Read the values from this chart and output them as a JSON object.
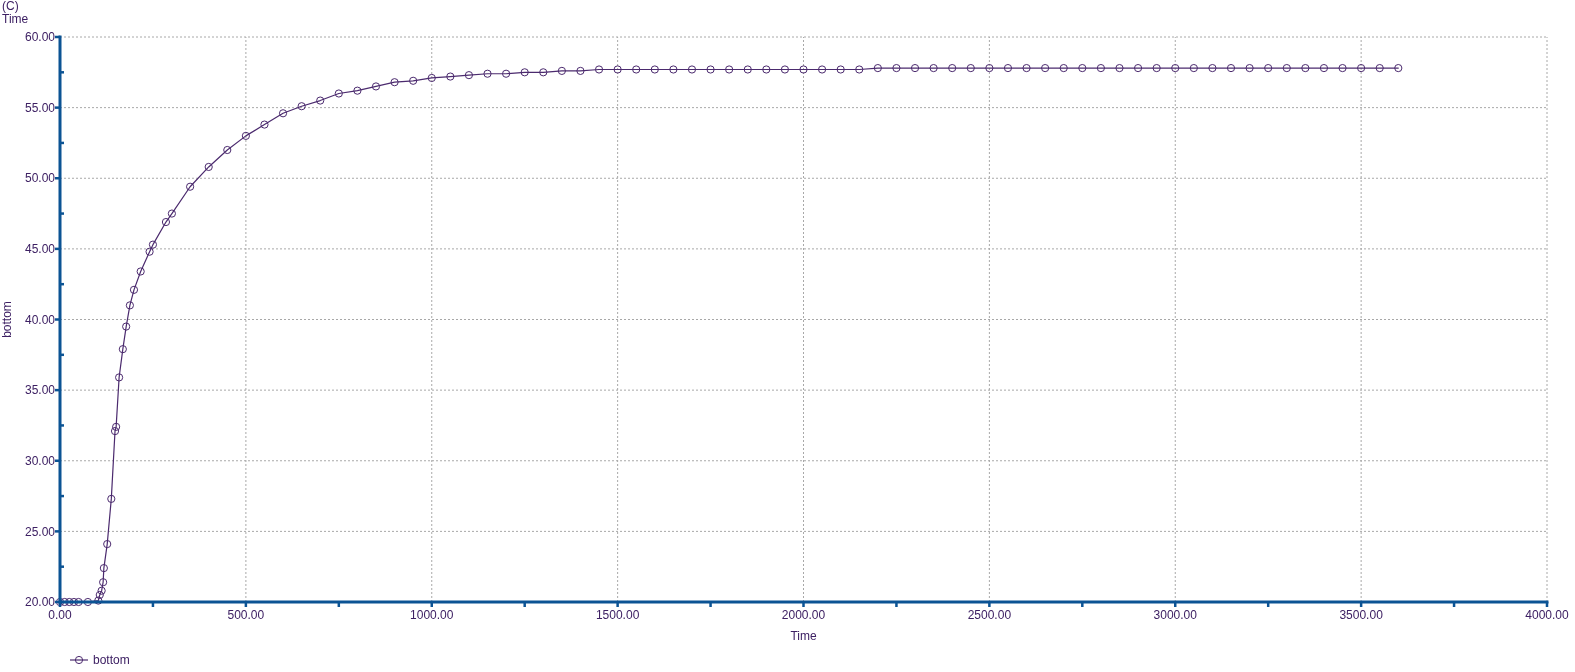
{
  "chart_data": {
    "type": "line",
    "annotations": [
      "(C)",
      "Time"
    ],
    "xlabel": "Time",
    "ylabel": "bottom",
    "x": [
      0,
      12.5,
      25,
      37.5,
      50,
      75,
      103,
      107,
      112,
      116,
      118,
      127,
      138,
      148,
      151,
      159,
      169,
      178,
      188,
      199,
      217,
      241,
      250,
      285,
      301,
      350,
      400,
      450,
      500,
      550,
      600,
      650,
      700,
      750,
      800,
      850,
      900,
      950,
      1000,
      1050,
      1100,
      1150,
      1200,
      1250,
      1300,
      1350,
      1400,
      1450,
      1500,
      1550,
      1600,
      1650,
      1700,
      1750,
      1800,
      1850,
      1900,
      1950,
      2000,
      2050,
      2100,
      2150,
      2200,
      2250,
      2300,
      2350,
      2400,
      2450,
      2500,
      2550,
      2600,
      2650,
      2700,
      2750,
      2800,
      2850,
      2900,
      2950,
      3000,
      3050,
      3100,
      3150,
      3200,
      3250,
      3300,
      3350,
      3400,
      3450,
      3500,
      3550,
      3600
    ],
    "series": [
      {
        "name": "bottom",
        "color": "#4b2a6e",
        "values": [
          20.0,
          20.0,
          20.0,
          20.0,
          20.0,
          20.0,
          20.1,
          20.5,
          20.8,
          21.4,
          22.4,
          24.1,
          27.3,
          32.1,
          32.4,
          35.9,
          37.9,
          39.5,
          41.0,
          42.1,
          43.4,
          44.8,
          45.3,
          46.9,
          47.5,
          49.4,
          50.8,
          52.0,
          53.0,
          53.8,
          54.6,
          55.1,
          55.5,
          56.0,
          56.2,
          56.5,
          56.8,
          56.9,
          57.1,
          57.2,
          57.3,
          57.4,
          57.4,
          57.5,
          57.5,
          57.6,
          57.6,
          57.7,
          57.7,
          57.7,
          57.7,
          57.7,
          57.7,
          57.7,
          57.7,
          57.7,
          57.7,
          57.7,
          57.7,
          57.7,
          57.7,
          57.7,
          57.8,
          57.8,
          57.8,
          57.8,
          57.8,
          57.8,
          57.8,
          57.8,
          57.8,
          57.8,
          57.8,
          57.8,
          57.8,
          57.8,
          57.8,
          57.8,
          57.8,
          57.8,
          57.8,
          57.8,
          57.8,
          57.8,
          57.8,
          57.8,
          57.8,
          57.8,
          57.8,
          57.8,
          57.8
        ]
      }
    ],
    "xlim": [
      0,
      4000
    ],
    "xticks": [
      {
        "value": 0,
        "label": "0.00"
      },
      {
        "value": 250,
        "label": null
      },
      {
        "value": 500,
        "label": "500.00"
      },
      {
        "value": 750,
        "label": null
      },
      {
        "value": 1000,
        "label": "1000.00"
      },
      {
        "value": 1250,
        "label": null
      },
      {
        "value": 1500,
        "label": "1500.00"
      },
      {
        "value": 1750,
        "label": null
      },
      {
        "value": 2000,
        "label": "2000.00"
      },
      {
        "value": 2250,
        "label": null
      },
      {
        "value": 2500,
        "label": "2500.00"
      },
      {
        "value": 2750,
        "label": null
      },
      {
        "value": 3000,
        "label": "3000.00"
      },
      {
        "value": 3250,
        "label": null
      },
      {
        "value": 3500,
        "label": "3500.00"
      },
      {
        "value": 3750,
        "label": null
      },
      {
        "value": 4000,
        "label": "4000.00"
      }
    ],
    "ylim": [
      20,
      60
    ],
    "yticks": [
      {
        "value": 20,
        "label": "20.00"
      },
      {
        "value": 22.5,
        "label": null
      },
      {
        "value": 25,
        "label": "25.00"
      },
      {
        "value": 27.5,
        "label": null
      },
      {
        "value": 30,
        "label": "30.00"
      },
      {
        "value": 32.5,
        "label": null
      },
      {
        "value": 35,
        "label": "35.00"
      },
      {
        "value": 37.5,
        "label": null
      },
      {
        "value": 40,
        "label": "40.00"
      },
      {
        "value": 42.5,
        "label": null
      },
      {
        "value": 45,
        "label": "45.00"
      },
      {
        "value": 47.5,
        "label": null
      },
      {
        "value": 50,
        "label": "50.00"
      },
      {
        "value": 52.5,
        "label": null
      },
      {
        "value": 55,
        "label": "55.00"
      },
      {
        "value": 57.5,
        "label": null
      },
      {
        "value": 60,
        "label": "60.00"
      }
    ],
    "grid": true,
    "legend": "bottom left",
    "marker": "circle",
    "line_style": "solid"
  }
}
